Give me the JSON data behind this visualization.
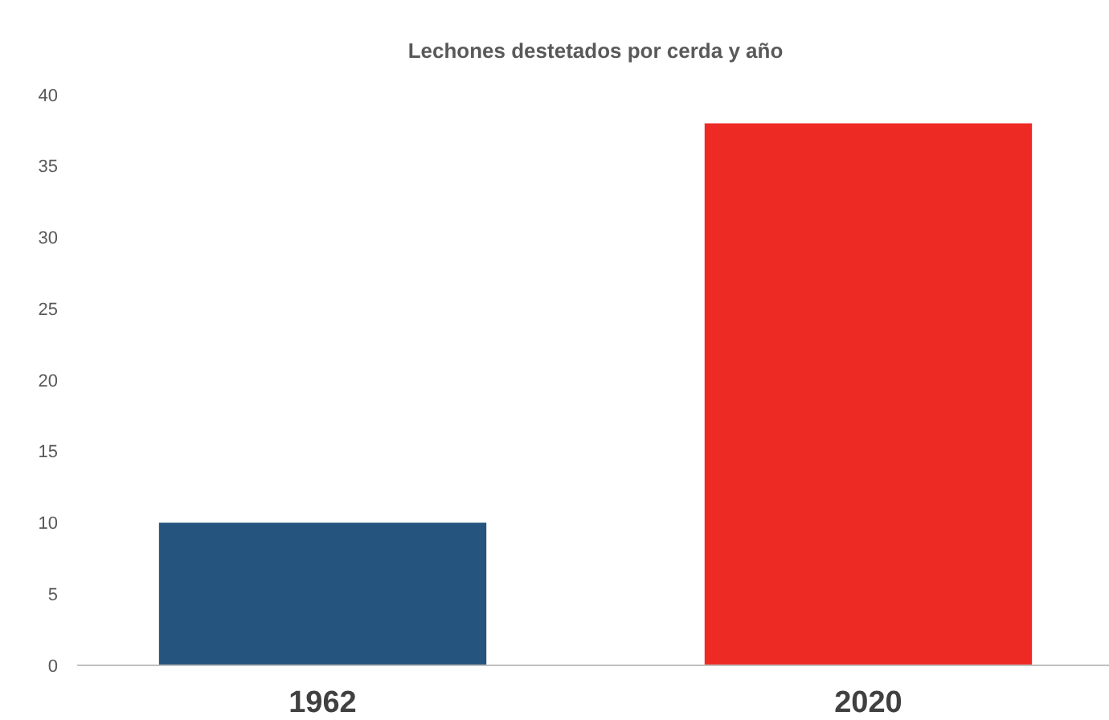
{
  "chart_data": {
    "type": "bar",
    "title": "Lechones destetados por cerda y año",
    "categories": [
      "1962",
      "2020"
    ],
    "values": [
      10,
      38
    ],
    "colors": [
      "#25557f",
      "#ee2a24"
    ],
    "ylim": [
      0,
      40
    ],
    "yticks": [
      0,
      5,
      10,
      15,
      20,
      25,
      30,
      35,
      40
    ],
    "grid": false
  }
}
